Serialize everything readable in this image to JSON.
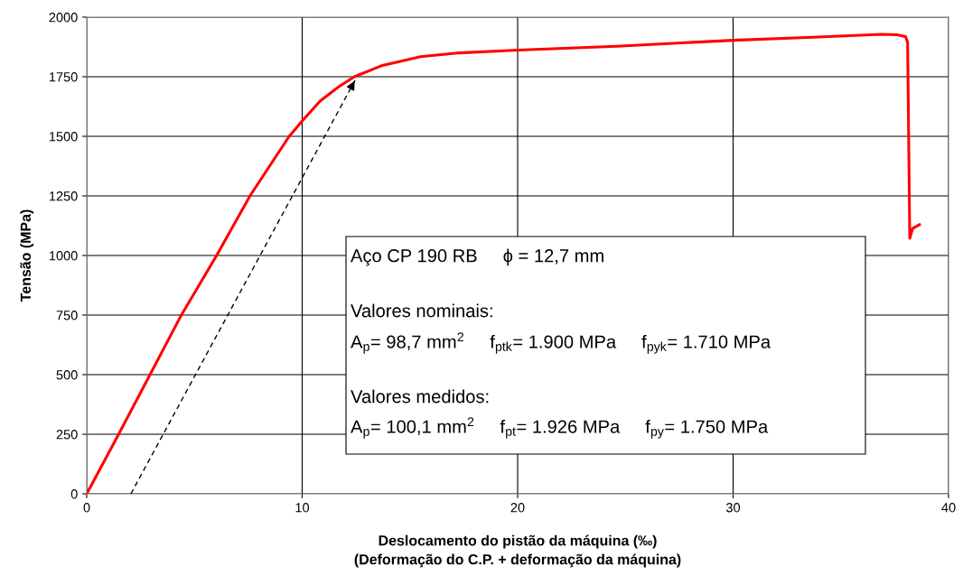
{
  "chart_data": {
    "type": "line",
    "xlabel": "Deslocamento do pistão da máquina (‰)\n(Deformação do C.P. + deformação da máquina)",
    "ylabel": "Tensão (MPa)",
    "xlim": [
      0,
      40
    ],
    "xticks": [
      0,
      10,
      20,
      30,
      40
    ],
    "ylim": [
      0,
      2000
    ],
    "yticks": [
      0,
      250,
      500,
      750,
      1000,
      1250,
      1500,
      1750,
      2000
    ],
    "grid": true,
    "series": [
      {
        "color": "#ff0000",
        "line_style": "solid",
        "x": [
          0,
          1.47,
          2.91,
          4.35,
          6.01,
          7.59,
          9.39,
          10.0,
          10.84,
          11.7,
          12.42,
          13.68,
          15.5,
          17.3,
          20,
          24.6,
          30.0,
          33.7,
          36.9,
          37.6,
          38.0,
          38.1,
          38.2,
          38.33,
          38.65
        ],
        "values": [
          0,
          248,
          495,
          743,
          997,
          1252,
          1499,
          1564,
          1649,
          1708,
          1750,
          1796,
          1834,
          1850,
          1862,
          1878,
          1903,
          1916,
          1928,
          1926,
          1919,
          1895,
          1072,
          1113,
          1129
        ]
      },
      {
        "color": "#000000",
        "line_style": "dashed",
        "x": [
          2.05,
          12.49
        ],
        "values": [
          0,
          1741
        ]
      }
    ],
    "annotations": [
      "Aço CP 190 RB     ϕ = 12,7 mm",
      "Valores nominais:",
      "A$_{p}$= 98,7 mm$^{2}$     f$_{ptk}$= 1.900 MPa     f$_{pyk}$= 1.710 MPa",
      "Valores medidos:",
      "A$_{p}$= 100,1 mm$^{2}$     f$_{pt}$= 1.926 MPa     f$_{py}$= 1.750 MPa"
    ]
  }
}
